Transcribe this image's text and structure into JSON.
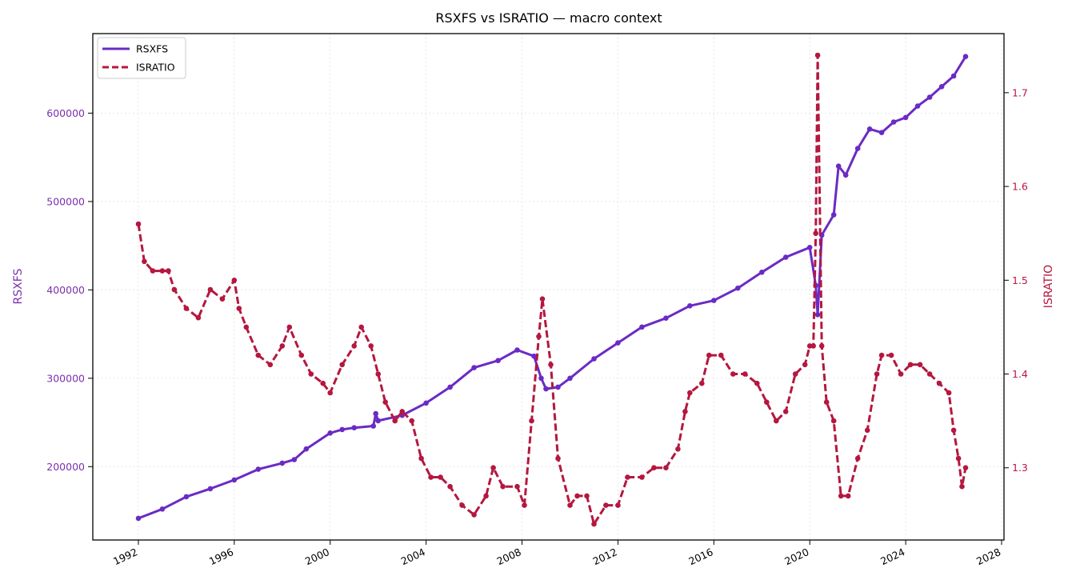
{
  "chart_data": {
    "type": "line",
    "title": "RSXFS vs ISRATIO — macro context",
    "xlabel": "",
    "x_ticks": [
      "1992",
      "1996",
      "2000",
      "2004",
      "2008",
      "2012",
      "2016",
      "2020",
      "2024",
      "2028"
    ],
    "xlim": [
      1990.1,
      2028.1
    ],
    "grid": true,
    "legend_position": "top-left",
    "left_axis": {
      "label": "RSXFS",
      "color": "#7B2FB0",
      "ticks": [
        "200000",
        "300000",
        "400000",
        "500000",
        "600000"
      ],
      "ylim": [
        117000,
        690000
      ]
    },
    "right_axis": {
      "label": "ISRATIO",
      "color": "#B5173F",
      "ticks": [
        "1.3",
        "1.4",
        "1.5",
        "1.6",
        "1.7"
      ],
      "ylim": [
        1.223,
        1.763
      ]
    },
    "series": [
      {
        "name": "RSXFS",
        "axis": "left",
        "color": "#6A2BC4",
        "style": "solid",
        "points": [
          [
            1992.0,
            141500
          ],
          [
            1993.0,
            152000
          ],
          [
            1994.0,
            166000
          ],
          [
            1995.0,
            175000
          ],
          [
            1996.0,
            185000
          ],
          [
            1997.0,
            197000
          ],
          [
            1998.0,
            204000
          ],
          [
            1998.5,
            208000
          ],
          [
            1999.0,
            220000
          ],
          [
            2000.0,
            238000
          ],
          [
            2000.5,
            242000
          ],
          [
            2001.0,
            244000
          ],
          [
            2001.8,
            246000
          ],
          [
            2001.9,
            260000
          ],
          [
            2002.0,
            252000
          ],
          [
            2003.0,
            258000
          ],
          [
            2004.0,
            272000
          ],
          [
            2005.0,
            290000
          ],
          [
            2006.0,
            312000
          ],
          [
            2007.0,
            320000
          ],
          [
            2007.8,
            332000
          ],
          [
            2008.5,
            325000
          ],
          [
            2008.8,
            300000
          ],
          [
            2009.0,
            288000
          ],
          [
            2009.5,
            290000
          ],
          [
            2010.0,
            300000
          ],
          [
            2011.0,
            322000
          ],
          [
            2012.0,
            340000
          ],
          [
            2013.0,
            358000
          ],
          [
            2014.0,
            368000
          ],
          [
            2015.0,
            382000
          ],
          [
            2016.0,
            388000
          ],
          [
            2017.0,
            402000
          ],
          [
            2018.0,
            420000
          ],
          [
            2019.0,
            437000
          ],
          [
            2020.0,
            448000
          ],
          [
            2020.25,
            405000
          ],
          [
            2020.33,
            372000
          ],
          [
            2020.5,
            462000
          ],
          [
            2021.0,
            485000
          ],
          [
            2021.2,
            540000
          ],
          [
            2021.5,
            530000
          ],
          [
            2022.0,
            560000
          ],
          [
            2022.5,
            582000
          ],
          [
            2023.0,
            578000
          ],
          [
            2023.5,
            590000
          ],
          [
            2024.0,
            595000
          ],
          [
            2024.5,
            608000
          ],
          [
            2025.0,
            618000
          ],
          [
            2025.5,
            630000
          ],
          [
            2026.0,
            642000
          ],
          [
            2026.5,
            664000
          ]
        ]
      },
      {
        "name": "ISRATIO",
        "axis": "right",
        "color": "#B5173F",
        "style": "dashed",
        "points": [
          [
            1992.0,
            1.56
          ],
          [
            1992.25,
            1.52
          ],
          [
            1992.6,
            1.51
          ],
          [
            1993.0,
            1.51
          ],
          [
            1993.25,
            1.51
          ],
          [
            1993.5,
            1.49
          ],
          [
            1994.0,
            1.47
          ],
          [
            1994.5,
            1.46
          ],
          [
            1995.0,
            1.49
          ],
          [
            1995.5,
            1.48
          ],
          [
            1996.0,
            1.5
          ],
          [
            1996.2,
            1.47
          ],
          [
            1996.5,
            1.45
          ],
          [
            1997.0,
            1.42
          ],
          [
            1997.5,
            1.41
          ],
          [
            1998.0,
            1.43
          ],
          [
            1998.3,
            1.45
          ],
          [
            1998.8,
            1.42
          ],
          [
            1999.2,
            1.4
          ],
          [
            1999.7,
            1.39
          ],
          [
            2000.0,
            1.38
          ],
          [
            2000.5,
            1.41
          ],
          [
            2001.0,
            1.43
          ],
          [
            2001.3,
            1.45
          ],
          [
            2001.7,
            1.43
          ],
          [
            2002.0,
            1.4
          ],
          [
            2002.3,
            1.37
          ],
          [
            2002.7,
            1.35
          ],
          [
            2003.0,
            1.36
          ],
          [
            2003.4,
            1.35
          ],
          [
            2003.8,
            1.31
          ],
          [
            2004.2,
            1.29
          ],
          [
            2004.6,
            1.29
          ],
          [
            2005.0,
            1.28
          ],
          [
            2005.5,
            1.26
          ],
          [
            2006.0,
            1.25
          ],
          [
            2006.5,
            1.27
          ],
          [
            2006.8,
            1.3
          ],
          [
            2007.2,
            1.28
          ],
          [
            2007.8,
            1.28
          ],
          [
            2008.1,
            1.26
          ],
          [
            2008.4,
            1.35
          ],
          [
            2008.7,
            1.44
          ],
          [
            2008.85,
            1.48
          ],
          [
            2009.2,
            1.41
          ],
          [
            2009.5,
            1.31
          ],
          [
            2010.0,
            1.26
          ],
          [
            2010.3,
            1.27
          ],
          [
            2010.7,
            1.27
          ],
          [
            2011.0,
            1.24
          ],
          [
            2011.5,
            1.26
          ],
          [
            2012.0,
            1.26
          ],
          [
            2012.4,
            1.29
          ],
          [
            2013.0,
            1.29
          ],
          [
            2013.5,
            1.3
          ],
          [
            2014.0,
            1.3
          ],
          [
            2014.5,
            1.32
          ],
          [
            2014.8,
            1.36
          ],
          [
            2015.0,
            1.38
          ],
          [
            2015.5,
            1.39
          ],
          [
            2015.8,
            1.42
          ],
          [
            2016.3,
            1.42
          ],
          [
            2016.8,
            1.4
          ],
          [
            2017.3,
            1.4
          ],
          [
            2017.8,
            1.39
          ],
          [
            2018.2,
            1.37
          ],
          [
            2018.6,
            1.35
          ],
          [
            2019.0,
            1.36
          ],
          [
            2019.4,
            1.4
          ],
          [
            2019.8,
            1.41
          ],
          [
            2020.0,
            1.43
          ],
          [
            2020.15,
            1.43
          ],
          [
            2020.25,
            1.55
          ],
          [
            2020.33,
            1.74
          ],
          [
            2020.5,
            1.43
          ],
          [
            2020.7,
            1.37
          ],
          [
            2021.0,
            1.35
          ],
          [
            2021.3,
            1.27
          ],
          [
            2021.6,
            1.27
          ],
          [
            2022.0,
            1.31
          ],
          [
            2022.4,
            1.34
          ],
          [
            2022.8,
            1.4
          ],
          [
            2023.0,
            1.42
          ],
          [
            2023.4,
            1.42
          ],
          [
            2023.8,
            1.4
          ],
          [
            2024.2,
            1.41
          ],
          [
            2024.6,
            1.41
          ],
          [
            2025.0,
            1.4
          ],
          [
            2025.4,
            1.39
          ],
          [
            2025.8,
            1.38
          ],
          [
            2026.0,
            1.34
          ],
          [
            2026.2,
            1.31
          ],
          [
            2026.35,
            1.28
          ],
          [
            2026.5,
            1.3
          ]
        ]
      }
    ]
  }
}
